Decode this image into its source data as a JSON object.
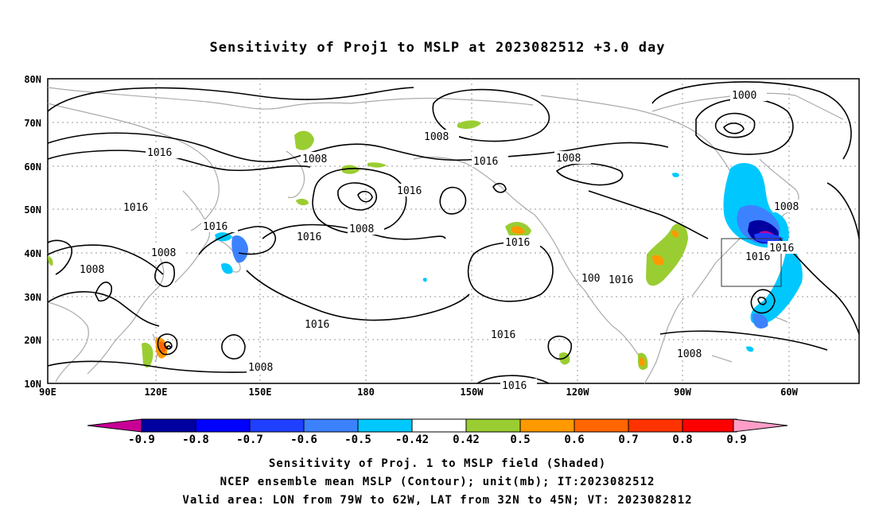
{
  "title": "Sensitivity of Proj1 to MSLP at 2023082512 +3.0 day",
  "lat_labels": [
    "80N",
    "70N",
    "60N",
    "50N",
    "40N",
    "30N",
    "20N",
    "10N"
  ],
  "lon_labels": [
    "90E",
    "120E",
    "150E",
    "180",
    "150W",
    "120W",
    "90W",
    "60W"
  ],
  "contour_labels": [
    "1000",
    "1008",
    "1008",
    "1008",
    "1008",
    "1008",
    "1008",
    "1008",
    "1008",
    "1016",
    "1016",
    "1016",
    "1016",
    "1016",
    "1016",
    "1016",
    "1016",
    "1016",
    "1016",
    "1016",
    "1016",
    "1016",
    "1008",
    "100",
    "1008"
  ],
  "colorbar": {
    "labels": [
      "-0.9",
      "-0.8",
      "-0.7",
      "-0.6",
      "-0.5",
      "-0.42",
      "0.42",
      "0.5",
      "0.6",
      "0.7",
      "0.8",
      "0.9"
    ],
    "colors": [
      "#0000a0",
      "#0000ff",
      "#2040ff",
      "#3c82ff",
      "#00c8ff",
      "#ffffff",
      "#9acd32",
      "#ff9900",
      "#ff6600",
      "#ff3300",
      "#ff0000"
    ],
    "low_extend_color": "#c80096",
    "high_extend_color": "#ff9ec8"
  },
  "footer": {
    "line1": "Sensitivity of Proj. 1 to MSLP field (Shaded)",
    "line2": "NCEP ensemble mean MSLP (Contour); unit(mb); IT:2023082512",
    "line3": "Valid area: LON from 79W to 62W, LAT from 32N to 45N; VT: 2023082812"
  },
  "map_data": {
    "domain": {
      "lon_min": 90,
      "lon_max": 315,
      "lat_min": 10,
      "lat_max": 80
    },
    "valid_box": {
      "lon_w": -79,
      "lon_e": -62,
      "lat_s": 32,
      "lat_n": 45
    },
    "contour_levels_mb": [
      1000,
      1008,
      1016
    ]
  }
}
